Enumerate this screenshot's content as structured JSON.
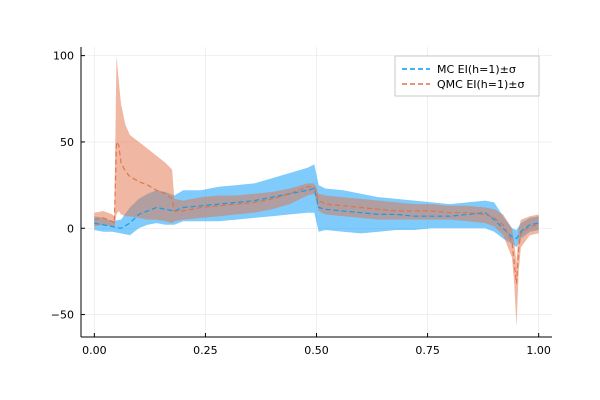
{
  "colors": {
    "mc": "#009af9",
    "qmc": "#e26f46"
  },
  "chart_data": {
    "type": "line",
    "title": "",
    "xlabel": "",
    "ylabel": "",
    "xlim": [
      -0.03,
      1.03
    ],
    "ylim": [
      -63,
      105
    ],
    "xticks": [
      0,
      0.25,
      0.5,
      0.75,
      1.0
    ],
    "xtick_labels": [
      "0.00",
      "0.25",
      "0.50",
      "0.75",
      "1.00"
    ],
    "yticks": [
      -50,
      0,
      50,
      100
    ],
    "ytick_labels": [
      "−50",
      "0",
      "50",
      "100"
    ],
    "grid": true,
    "legend_position": "top-right",
    "series": [
      {
        "name": "MC EI(h=1)±σ",
        "color": "#009af9",
        "linestyle": "dashed",
        "x": [
          0.0,
          0.02,
          0.04,
          0.06,
          0.08,
          0.1,
          0.12,
          0.14,
          0.16,
          0.18,
          0.2,
          0.24,
          0.28,
          0.32,
          0.36,
          0.4,
          0.44,
          0.48,
          0.495,
          0.505,
          0.52,
          0.56,
          0.6,
          0.64,
          0.68,
          0.72,
          0.76,
          0.8,
          0.84,
          0.88,
          0.9,
          0.92,
          0.94,
          0.95,
          0.96,
          0.98,
          1.0
        ],
        "mean": [
          3,
          2,
          1,
          0,
          3,
          8,
          10,
          12,
          11,
          10,
          12,
          13,
          14,
          15,
          16,
          18,
          20,
          22,
          23,
          12,
          11,
          10,
          9,
          8,
          8,
          7,
          7,
          7,
          8,
          9,
          5,
          0,
          -5,
          -6,
          -2,
          2,
          3
        ],
        "upper": [
          7,
          6,
          4,
          5,
          12,
          17,
          20,
          22,
          21,
          19,
          22,
          22,
          24,
          25,
          26,
          29,
          32,
          35,
          37,
          25,
          23,
          22,
          20,
          18,
          17,
          16,
          15,
          14,
          15,
          16,
          15,
          7,
          0,
          -1,
          3,
          6,
          7
        ],
        "lower": [
          -1,
          -2,
          -2,
          -3,
          -4,
          0,
          2,
          3,
          2,
          2,
          4,
          4,
          4,
          5,
          6,
          7,
          8,
          9,
          9,
          -2,
          -1,
          -2,
          -3,
          -2,
          -1,
          -1,
          0,
          0,
          0,
          0,
          -2,
          -6,
          -9,
          -11,
          -6,
          -2,
          -1
        ]
      },
      {
        "name": "QMC EI(h=1)±σ",
        "color": "#e26f46",
        "linestyle": "dashed",
        "x": [
          0.0,
          0.02,
          0.04,
          0.045,
          0.05,
          0.055,
          0.06,
          0.07,
          0.08,
          0.1,
          0.12,
          0.14,
          0.16,
          0.175,
          0.18,
          0.2,
          0.24,
          0.28,
          0.32,
          0.36,
          0.4,
          0.44,
          0.48,
          0.495,
          0.505,
          0.52,
          0.56,
          0.6,
          0.64,
          0.68,
          0.72,
          0.76,
          0.8,
          0.84,
          0.88,
          0.9,
          0.92,
          0.94,
          0.945,
          0.95,
          0.955,
          0.96,
          0.98,
          1.0
        ],
        "mean": [
          5,
          6,
          4,
          3,
          50,
          48,
          38,
          33,
          30,
          27,
          25,
          22,
          20,
          17,
          10,
          10,
          12,
          13,
          14,
          15,
          17,
          20,
          24,
          24,
          16,
          14,
          13,
          12,
          11,
          10,
          10,
          10,
          9,
          9,
          8,
          6,
          2,
          -8,
          -20,
          -32,
          -12,
          -3,
          1,
          2
        ],
        "upper": [
          9,
          10,
          8,
          7,
          100,
          85,
          72,
          60,
          54,
          50,
          46,
          42,
          38,
          34,
          17,
          16,
          18,
          19,
          19,
          20,
          21,
          23,
          26,
          26,
          20,
          19,
          18,
          17,
          16,
          15,
          14,
          14,
          13,
          13,
          12,
          11,
          8,
          0,
          -8,
          -20,
          0,
          5,
          7,
          8
        ],
        "lower": [
          1,
          2,
          1,
          0,
          8,
          10,
          8,
          7,
          7,
          6,
          5,
          5,
          4,
          3,
          4,
          5,
          6,
          7,
          8,
          9,
          11,
          14,
          19,
          20,
          10,
          8,
          7,
          6,
          5,
          5,
          5,
          5,
          5,
          4,
          3,
          1,
          -4,
          -17,
          -32,
          -57,
          -25,
          -11,
          -4,
          -3
        ]
      }
    ]
  }
}
